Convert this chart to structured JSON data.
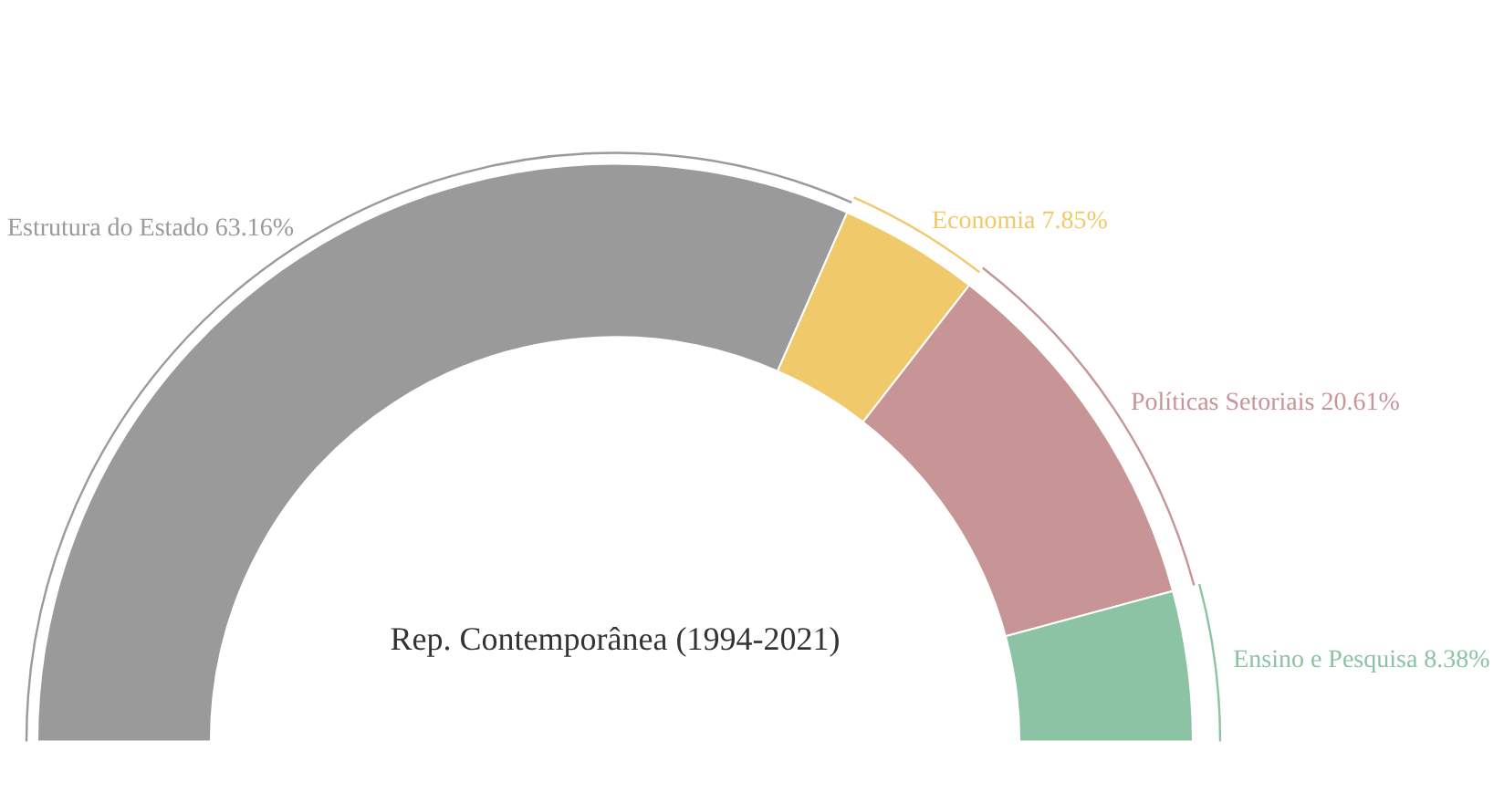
{
  "chart_data": {
    "type": "donut",
    "title": "Rep. Contemporânea (1994-2021)",
    "categories": [
      "Estrutura do Estado",
      "Economia",
      "Políticas Setoriais",
      "Ensino e Pesquisa"
    ],
    "values": [
      63.16,
      7.85,
      20.61,
      8.38
    ],
    "colors": [
      "#9a9a9a",
      "#f0c96a",
      "#c79596",
      "#8dc3a5"
    ],
    "value_labels": [
      "63.16%",
      "7.85%",
      "20.61%",
      "8.38%"
    ],
    "legend": false
  }
}
